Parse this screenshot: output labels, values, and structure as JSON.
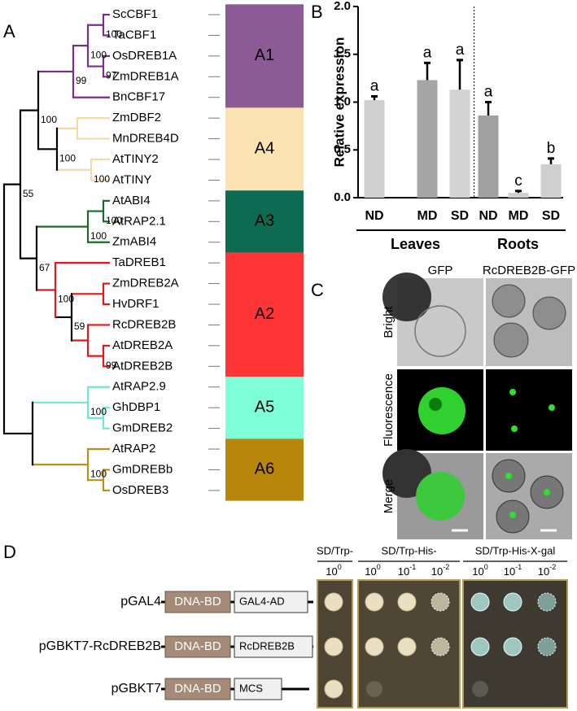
{
  "panel_a": {
    "label": "A",
    "bootstrap": [
      100,
      97,
      100,
      99,
      100,
      100,
      100,
      100,
      100,
      99,
      59,
      100,
      67,
      55,
      100,
      100
    ],
    "groups": [
      {
        "label": "A1",
        "color": "#8c5a94",
        "branch_color": "#7b2d8b",
        "taxa": [
          "ScCBF1",
          "TaCBF1",
          "OsDREB1A",
          "ZmDREB1A",
          "BnCBF17"
        ]
      },
      {
        "label": "A4",
        "color": "#fbe2b3",
        "branch_color": "#f5d9a6",
        "taxa": [
          "ZmDBF2",
          "MnDREB4D",
          "AtTINY2",
          "AtTINY"
        ]
      },
      {
        "label": "A3",
        "color": "#0c6b50",
        "branch_color": "#1a6b2a",
        "taxa": [
          "AtABI4",
          "AtRAP2.1",
          "ZmABI4"
        ]
      },
      {
        "label": "A2",
        "color": "#ff3434",
        "branch_color": "#e8161b",
        "taxa": [
          "TaDREB1",
          "ZmDREB2A",
          "HvDRF1",
          "RcDREB2B",
          "AtDREB2A",
          "AtDREB2B"
        ]
      },
      {
        "label": "A5",
        "color": "#7fffd8",
        "branch_color": "#6fe8cf",
        "taxa": [
          "AtRAP2.9",
          "GhDBP1",
          "GmDREB2"
        ]
      },
      {
        "label": "A6",
        "color": "#b8860b",
        "branch_color": "#b8901a",
        "taxa": [
          "AtRAP2",
          "GmDREBb",
          "OsDREB3"
        ]
      }
    ]
  },
  "chart_data": {
    "type": "bar",
    "label": "B",
    "y_label": "Relative expression",
    "categories": [
      "ND",
      "MD",
      "SD",
      "ND",
      "MD",
      "SD"
    ],
    "values": [
      1.02,
      1.23,
      1.13,
      0.86,
      0.05,
      0.35
    ],
    "errors": [
      0.04,
      0.18,
      0.31,
      0.14,
      0.02,
      0.06
    ],
    "annotations": [
      "a",
      "a",
      "a",
      "a",
      "c",
      "b"
    ],
    "colors": [
      "#cfcfcf",
      "#a6a6a6",
      "#d3d3d3",
      "#a0a0a0",
      "#cfcfcf",
      "#cfcfcf"
    ],
    "groups": [
      "Leaves",
      "Roots"
    ],
    "ylim": [
      0,
      2
    ],
    "yticks": [
      {
        "value": 0,
        "label": "0.0"
      },
      {
        "value": 0.5,
        "label": "0.5"
      },
      {
        "value": 1,
        "label": "1.0"
      },
      {
        "value": 1.5,
        "label": "1.5"
      },
      {
        "value": 2,
        "label": "2.0"
      }
    ]
  },
  "panel_c": {
    "label": "C",
    "columns": [
      "GFP",
      "RcDREB2B-GFP"
    ],
    "rows": [
      "Bright",
      "Fluorescence",
      "Merge"
    ]
  },
  "panel_d": {
    "label": "D",
    "media": [
      "SD/Trp-",
      "SD/Trp-His-",
      "SD/Trp-His-X-gal"
    ],
    "dilutions": [
      {
        "base": "10",
        "exponent": "0"
      },
      {
        "base": "10",
        "exponent": "0"
      },
      {
        "base": "10",
        "exponent": "-1"
      },
      {
        "base": "10",
        "exponent": "-2"
      },
      {
        "base": "10",
        "exponent": "0"
      },
      {
        "base": "10",
        "exponent": "-1"
      },
      {
        "base": "10",
        "exponent": "-2"
      }
    ],
    "constructs": [
      {
        "name": "pGAL4",
        "domains": [
          "DNA-BD",
          "GAL4-AD"
        ]
      },
      {
        "name": "pGBKT7-RcDREB2B",
        "domains": [
          "DNA-BD",
          "RcDREB2B"
        ]
      },
      {
        "name": "pGBKT7",
        "domains": [
          "DNA-BD",
          "MCS"
        ]
      }
    ]
  }
}
